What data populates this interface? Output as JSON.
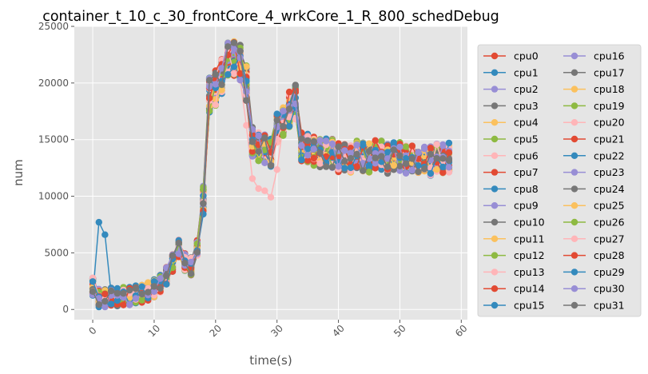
{
  "chart_data": {
    "type": "line",
    "title": "container_t_10_c_30_frontCore_4_wrkCore_1_R_800_schedDebug",
    "xlabel": "time(s)",
    "ylabel": "num",
    "xlim": [
      -3,
      61
    ],
    "ylim": [
      -900,
      25000
    ],
    "xticks": [
      0,
      10,
      20,
      30,
      40,
      50,
      60
    ],
    "yticks": [
      0,
      5000,
      10000,
      15000,
      20000,
      25000
    ],
    "grid": true,
    "legend_placement": "outside-right",
    "colors": [
      "#E24A33",
      "#348ABD",
      "#988ED5",
      "#777777",
      "#FBC15E",
      "#8EBA42",
      "#FFB5B8"
    ],
    "series_names": [
      "cpu0",
      "cpu1",
      "cpu2",
      "cpu3",
      "cpu4",
      "cpu5",
      "cpu6",
      "cpu7",
      "cpu8",
      "cpu9",
      "cpu10",
      "cpu11",
      "cpu12",
      "cpu13",
      "cpu14",
      "cpu15",
      "cpu16",
      "cpu17",
      "cpu18",
      "cpu19",
      "cpu20",
      "cpu21",
      "cpu22",
      "cpu23",
      "cpu24",
      "cpu25",
      "cpu26",
      "cpu27",
      "cpu28",
      "cpu29",
      "cpu30",
      "cpu31"
    ],
    "x": [
      0,
      1,
      2,
      3,
      4,
      5,
      6,
      7,
      8,
      9,
      10,
      11,
      12,
      13,
      14,
      15,
      16,
      17,
      18,
      19,
      20,
      21,
      22,
      23,
      24,
      25,
      26,
      27,
      28,
      29,
      30,
      31,
      32,
      33,
      34,
      35,
      36,
      37,
      38,
      39,
      40,
      41,
      42,
      43,
      44,
      45,
      46,
      47,
      48,
      49,
      50,
      51,
      52,
      53,
      54,
      55,
      56,
      57,
      58
    ],
    "base_profile": [
      2000,
      1000,
      1000,
      1100,
      1100,
      1200,
      1200,
      1300,
      1400,
      1600,
      1900,
      2300,
      3000,
      4100,
      5400,
      4200,
      3800,
      5400,
      9600,
      19000,
      19600,
      20600,
      22000,
      22200,
      21800,
      20000,
      14800,
      14400,
      14200,
      13800,
      16000,
      16600,
      17700,
      18300,
      14400,
      14200,
      14000,
      13800,
      13800,
      13800,
      13400,
      13600,
      13400,
      13600,
      13500,
      13400,
      13700,
      13600,
      13300,
      13600,
      13500,
      13200,
      13300,
      13200,
      13400,
      13100,
      13400,
      13300,
      13400
    ]
  }
}
